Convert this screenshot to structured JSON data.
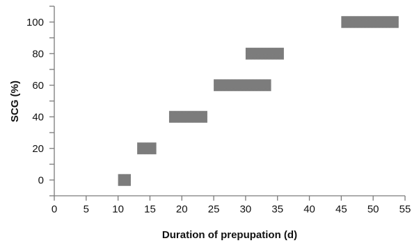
{
  "chart_data": {
    "type": "bar",
    "orientation": "horizontal-range",
    "title": "",
    "xlabel": "Duration of prepupation (d)",
    "ylabel": "SCG (%)",
    "xlim": [
      0,
      55
    ],
    "ylim": [
      -10,
      110
    ],
    "x_ticks": [
      0,
      5,
      10,
      15,
      20,
      25,
      30,
      35,
      40,
      45,
      50,
      55
    ],
    "y_tick_labels": [
      0,
      20,
      40,
      60,
      80,
      100
    ],
    "y_ticks_all": [
      -10,
      0,
      10,
      20,
      30,
      40,
      50,
      60,
      70,
      80,
      90,
      100,
      110
    ],
    "grid": false,
    "legend": "none",
    "bar_color": "#7f7f7f",
    "series": [
      {
        "ranges": [
          {
            "y": 0,
            "x_start": 10,
            "x_end": 12
          },
          {
            "y": 20,
            "x_start": 13,
            "x_end": 16
          },
          {
            "y": 40,
            "x_start": 18,
            "x_end": 24
          },
          {
            "y": 60,
            "x_start": 25,
            "x_end": 34
          },
          {
            "y": 80,
            "x_start": 30,
            "x_end": 36
          },
          {
            "y": 100,
            "x_start": 45,
            "x_end": 54
          }
        ]
      }
    ]
  }
}
